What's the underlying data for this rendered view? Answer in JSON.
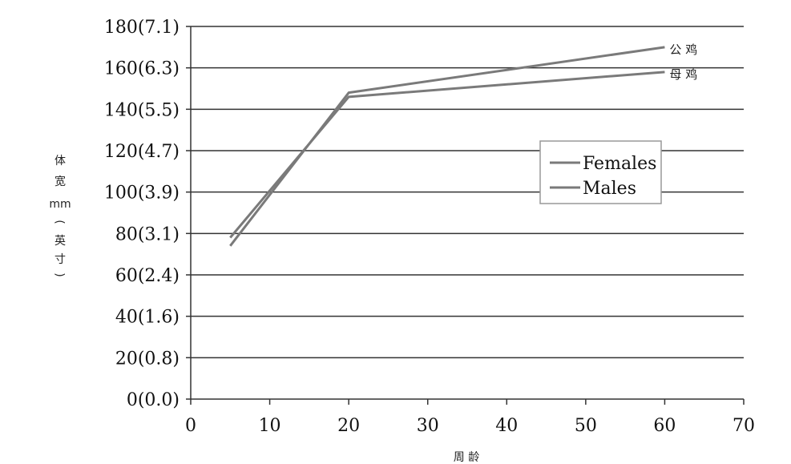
{
  "chart_data": {
    "type": "line",
    "title": "",
    "xlabel": "周 龄",
    "ylabel_chars": [
      "体",
      "宽",
      "mm",
      "(",
      "英",
      "寸",
      ")"
    ],
    "xlim": [
      0,
      70
    ],
    "ylim": [
      0,
      180
    ],
    "x_ticks": [
      "0",
      "10",
      "20",
      "30",
      "40",
      "50",
      "60",
      "70"
    ],
    "y_ticks": [
      "0(0.0)",
      "20(0.8)",
      "40(1.6)",
      "60(2.4)",
      "80(3.1)",
      "100(3.9)",
      "120(4.7)",
      "140(5.5)",
      "160(6.3)",
      "180(7.1)"
    ],
    "grid": true,
    "series": [
      {
        "name": "Females",
        "end_label": "母 鸡",
        "color": "#7a7a7a",
        "x": [
          5,
          20,
          60
        ],
        "y": [
          78,
          146,
          158
        ]
      },
      {
        "name": "Males",
        "end_label": "公 鸡",
        "color": "#7a7a7a",
        "x": [
          5,
          20,
          60
        ],
        "y": [
          74,
          148,
          170
        ]
      }
    ],
    "legend": {
      "position": "right",
      "entries": [
        "Females",
        "Males"
      ]
    }
  }
}
